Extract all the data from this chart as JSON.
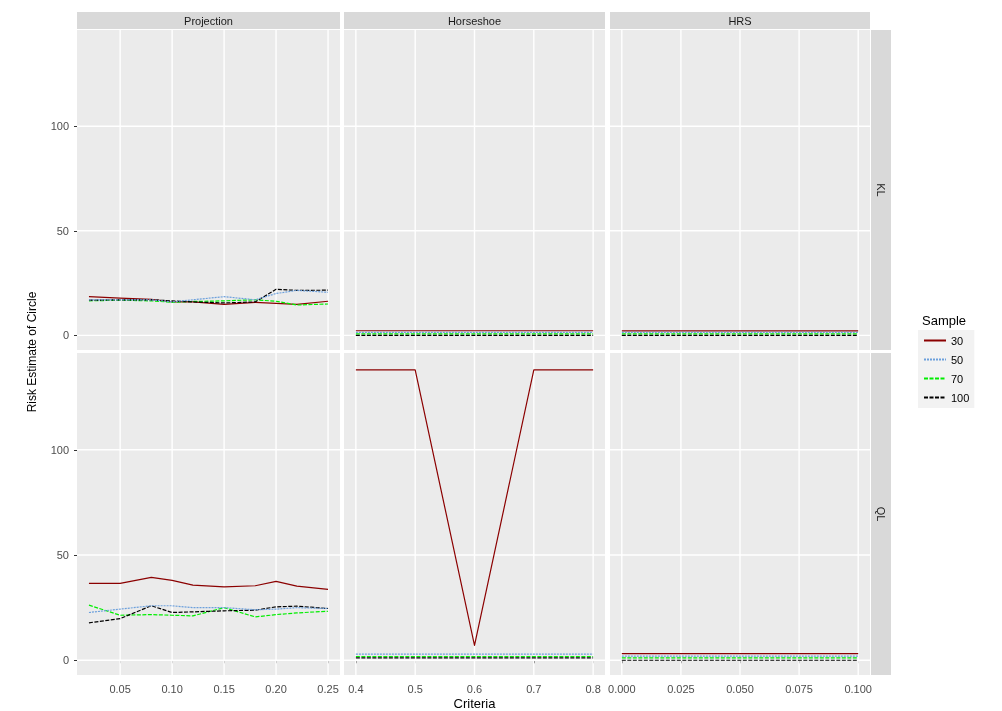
{
  "chart_data": [
    {
      "type": "line",
      "title": "Projection",
      "ylabel": "Risk Estimate of Circle",
      "xlim": [
        0.0085,
        0.2615
      ],
      "ylim": [
        -7,
        146
      ],
      "xticks": [
        0.05,
        0.1,
        0.15,
        0.2,
        0.25
      ],
      "yticks": [
        0,
        50,
        100
      ],
      "grid": true,
      "tick_labels": "y",
      "x": [
        0.02,
        0.05,
        0.08,
        0.1,
        0.12,
        0.15,
        0.18,
        0.2,
        0.22,
        0.25
      ],
      "series": [
        {
          "color": "#8b0000",
          "line_style": "solid",
          "values": [
            18.5,
            17.8,
            17.2,
            16,
            16,
            14.8,
            15.8,
            15.3,
            14.8,
            16.3
          ]
        },
        {
          "color": "#6ca0dc",
          "line_style": "dotted",
          "values": [
            17,
            17,
            17,
            16,
            17,
            18.5,
            17,
            20,
            21.5,
            20.6
          ]
        },
        {
          "color": "#00ee00",
          "line_style": "dashed",
          "values": [
            16.5,
            16.8,
            16.5,
            15.8,
            16.2,
            16.5,
            17,
            16.3,
            14.5,
            15
          ]
        },
        {
          "color": "#000000",
          "line_style": "dashed",
          "values": [
            16.8,
            17,
            17,
            16.5,
            16,
            15.5,
            16,
            22,
            21.5,
            21.6
          ]
        }
      ]
    },
    {
      "type": "line",
      "title": "Horseshoe",
      "xlim": [
        0.38,
        0.82
      ],
      "ylim": [
        -7,
        146
      ],
      "xticks": [
        0.4,
        0.5,
        0.6,
        0.7,
        0.8
      ],
      "yticks": [
        0,
        50,
        100
      ],
      "grid": true,
      "tick_labels": false,
      "x": [
        0.4,
        0.5,
        0.6,
        0.7,
        0.8
      ],
      "series": [
        {
          "color": "#8b0000",
          "line_style": "solid",
          "values": [
            2.2,
            2.2,
            2.2,
            2.2,
            2.2
          ]
        },
        {
          "color": "#6ca0dc",
          "line_style": "dotted",
          "values": [
            1.4,
            1.4,
            1.4,
            1.4,
            1.4
          ]
        },
        {
          "color": "#00ee00",
          "line_style": "dashed",
          "values": [
            0.7,
            0.7,
            0.7,
            0.7,
            0.7
          ]
        },
        {
          "color": "#000000",
          "line_style": "dashed",
          "values": [
            0,
            0,
            0,
            0,
            0
          ]
        }
      ]
    },
    {
      "type": "line",
      "title": "HRS",
      "y2label": "KL",
      "legend": "right",
      "legend_title": "Sample",
      "xlim": [
        -0.005,
        0.105
      ],
      "ylim": [
        -7,
        146
      ],
      "xticks": [
        0,
        0.025,
        0.05,
        0.075,
        0.1
      ],
      "yticks": [
        0,
        50,
        100
      ],
      "grid": true,
      "tick_labels": false,
      "x": [
        0,
        0.1
      ],
      "series": [
        {
          "name": "30",
          "color": "#8b0000",
          "line_style": "solid",
          "values": [
            2.1,
            2.1
          ]
        },
        {
          "name": "50",
          "color": "#6ca0dc",
          "line_style": "dotted",
          "values": [
            1.4,
            1.4
          ]
        },
        {
          "name": "70",
          "color": "#00ee00",
          "line_style": "dashed",
          "values": [
            0.7,
            0.7
          ]
        },
        {
          "name": "100",
          "color": "#000000",
          "line_style": "dashed",
          "values": [
            0,
            0
          ]
        }
      ]
    },
    {
      "type": "line",
      "xlim": [
        0.0085,
        0.2615
      ],
      "ylim": [
        -7,
        146
      ],
      "xticks": [
        {
          "value": 0.05,
          "label": "0.05"
        },
        {
          "value": 0.1,
          "label": "0.10"
        },
        {
          "value": 0.15,
          "label": "0.15"
        },
        {
          "value": 0.2,
          "label": "0.20"
        },
        {
          "value": 0.25,
          "label": "0.25"
        }
      ],
      "yticks": [
        0,
        50,
        100
      ],
      "grid": true,
      "x": [
        0.02,
        0.05,
        0.08,
        0.1,
        0.12,
        0.15,
        0.18,
        0.2,
        0.22,
        0.25
      ],
      "series": [
        {
          "color": "#8b0000",
          "line_style": "solid",
          "values": [
            36.5,
            36.5,
            39.4,
            38,
            35.7,
            34.9,
            35.4,
            37.5,
            35.2,
            33.7
          ]
        },
        {
          "color": "#6ca0dc",
          "line_style": "dotted",
          "values": [
            22.7,
            24.3,
            25.9,
            25.9,
            25,
            25,
            24,
            24.3,
            25,
            24.6
          ]
        },
        {
          "color": "#00ee00",
          "line_style": "dashed",
          "values": [
            26.2,
            21.4,
            21.7,
            21.4,
            21.1,
            25,
            20.6,
            21.7,
            22.5,
            23.3
          ]
        },
        {
          "color": "#000000",
          "line_style": "dashed",
          "values": [
            17.8,
            19.8,
            25.9,
            22.7,
            23,
            23.5,
            23.8,
            25.4,
            25.7,
            24.6
          ]
        }
      ]
    },
    {
      "type": "line",
      "xlabel": "Criteria",
      "xlim": [
        0.38,
        0.82
      ],
      "ylim": [
        -7,
        146
      ],
      "xticks": [
        0.4,
        0.5,
        0.6,
        0.7,
        0.8
      ],
      "yticks": [
        0,
        50,
        100
      ],
      "grid": true,
      "tick_labels": "x",
      "x": [
        0.4,
        0.5,
        0.6,
        0.7,
        0.8
      ],
      "series": [
        {
          "color": "#8b0000",
          "line_style": "solid",
          "values": [
            138,
            138,
            7.1,
            138,
            138
          ]
        },
        {
          "color": "#6ca0dc",
          "line_style": "dotted",
          "values": [
            2.9,
            2.9,
            2.9,
            2.9,
            2.9
          ]
        },
        {
          "color": "#00ee00",
          "line_style": "dashed",
          "values": [
            1.8,
            1.8,
            1.8,
            1.8,
            1.8
          ]
        },
        {
          "color": "#000000",
          "line_style": "dashed",
          "values": [
            1.1,
            1.1,
            1.1,
            1.1,
            1.1
          ]
        }
      ]
    },
    {
      "type": "line",
      "y2label": "QL",
      "xlim": [
        -0.005,
        0.105
      ],
      "ylim": [
        -7,
        146
      ],
      "xticks": [
        {
          "value": 0,
          "label": "0.000"
        },
        {
          "value": 0.025,
          "label": "0.025"
        },
        {
          "value": 0.05,
          "label": "0.050"
        },
        {
          "value": 0.075,
          "label": "0.075"
        },
        {
          "value": 0.1,
          "label": "0.100"
        }
      ],
      "yticks": [
        0,
        50,
        100
      ],
      "grid": true,
      "tick_labels": "x",
      "x": [
        0,
        0.1
      ],
      "series": [
        {
          "color": "#8b0000",
          "line_style": "solid",
          "values": [
            3.2,
            3.2
          ]
        },
        {
          "color": "#6ca0dc",
          "line_style": "dotted",
          "values": [
            2,
            2
          ]
        },
        {
          "color": "#00ee00",
          "line_style": "dashed",
          "values": [
            1.1,
            1.1
          ]
        },
        {
          "color": "#000000",
          "line_style": "dashed",
          "values": [
            0,
            0
          ]
        }
      ]
    }
  ]
}
